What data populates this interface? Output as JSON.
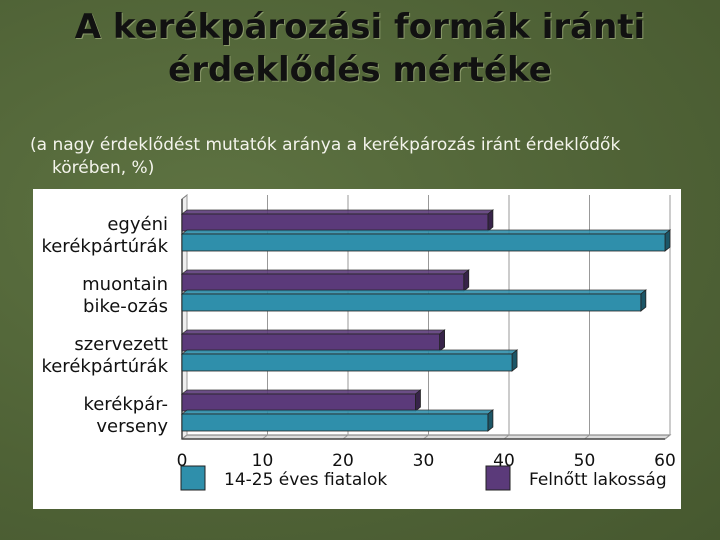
{
  "title_line1": "A kerékpározási formák iránti",
  "title_line2": "érdeklődés mértéke",
  "subtitle_line1": "(a nagy érdeklődést mutatók aránya a kerékpározás iránt érdeklődők",
  "subtitle_line2": "körében, %)",
  "chart_data": {
    "type": "bar",
    "orientation": "horizontal",
    "categories": [
      [
        "egyéni",
        "kerékpártúrák"
      ],
      [
        "muontain",
        "bike-ozás"
      ],
      [
        "szervezett",
        "kerékpártúrák"
      ],
      [
        "kerékpár-",
        "verseny"
      ]
    ],
    "series": [
      {
        "name": "Felnőtt lakosság",
        "color": "#5b3a7a",
        "values": [
          38,
          35,
          32,
          29
        ]
      },
      {
        "name": "14-25 éves fiatalok",
        "color": "#2f8fab",
        "values": [
          60,
          57,
          41,
          38
        ]
      }
    ],
    "xlim": [
      0,
      60
    ],
    "xticks": [
      0,
      10,
      20,
      30,
      40,
      50,
      60
    ],
    "grid": true,
    "legend": "bottom",
    "legend_order": [
      "14-25 éves fiatalok",
      "Felnőtt lakosság"
    ]
  }
}
